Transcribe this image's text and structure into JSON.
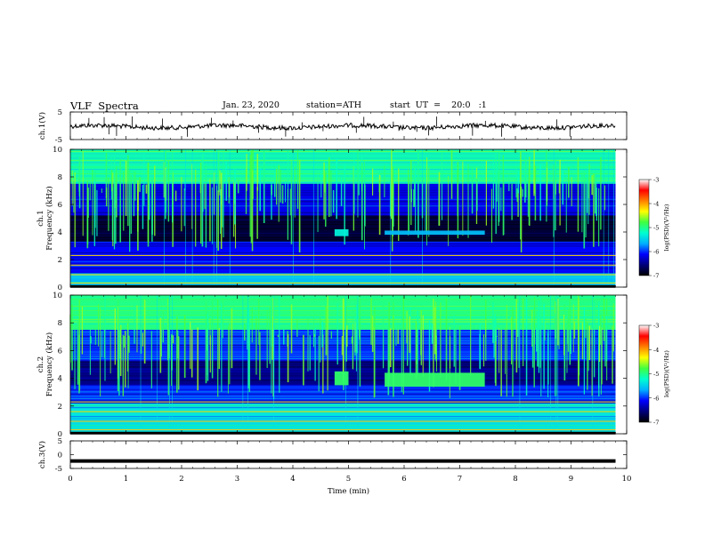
{
  "header": {
    "title": "VLF  Spectra",
    "date": "Jan. 23, 2020",
    "station": "station=ATH",
    "start": "start  UT  =    20:0   :1"
  },
  "chart_data": [
    {
      "type": "line",
      "panel": "ch1-waveform",
      "ylabel": "ch.1(V)",
      "ylim": [
        -5,
        5
      ],
      "ytick_labels": [
        "5",
        "-5"
      ],
      "grid": false
    },
    {
      "type": "heatmap",
      "panel": "ch1-spectrogram",
      "ylabel_lines": [
        "ch.1",
        "Frequency  (kHz)"
      ],
      "ylim": [
        0,
        10
      ],
      "ytick_labels": [
        "0",
        "2",
        "4",
        "6",
        "8",
        "10"
      ],
      "colorbar": {
        "label": "log(PSD)(V²/Hz)",
        "range": [
          -7,
          -3
        ],
        "tick_labels": [
          "-3",
          "-4",
          "-5",
          "-6",
          "-7"
        ],
        "colormap": [
          "#000000",
          "#00007a",
          "#0000ff",
          "#00b0ff",
          "#00ffd0",
          "#40ff40",
          "#ffff00",
          "#ff8000",
          "#ff0000",
          "#ffffff"
        ]
      },
      "background_psd": -6.3,
      "features": [
        {
          "kind": "band",
          "f": [
            0.0,
            1.0
          ],
          "psd": -5.6
        },
        {
          "kind": "band",
          "f": [
            1.0,
            3.3
          ],
          "psd": -6.1
        },
        {
          "kind": "band",
          "f": [
            3.3,
            5.2
          ],
          "psd": -6.8
        },
        {
          "kind": "band",
          "f": [
            5.2,
            7.5
          ],
          "psd": -6.2
        },
        {
          "kind": "band",
          "f": [
            7.5,
            10.0
          ],
          "psd": -5.1
        },
        {
          "kind": "emission",
          "t": [
            4.75,
            5.0
          ],
          "f": [
            3.7,
            4.2
          ],
          "psd": -5.3
        },
        {
          "kind": "emission",
          "t": [
            5.65,
            7.45
          ],
          "f": [
            3.8,
            4.1
          ],
          "psd": -5.6
        }
      ]
    },
    {
      "type": "heatmap",
      "panel": "ch2-spectrogram",
      "ylabel_lines": [
        "ch.2",
        "Frequency  (kHz)"
      ],
      "ylim": [
        0,
        10
      ],
      "ytick_labels": [
        "0",
        "2",
        "4",
        "6",
        "8",
        "10"
      ],
      "colorbar": {
        "label": "log(PSD)(V²/Hz)",
        "range": [
          -7,
          -3
        ],
        "tick_labels": [
          "-3",
          "-4",
          "-5",
          "-6",
          "-7"
        ]
      },
      "background_psd": -6.2,
      "features": [
        {
          "kind": "band",
          "f": [
            0.0,
            2.2
          ],
          "psd": -5.4
        },
        {
          "kind": "band",
          "f": [
            2.2,
            3.5
          ],
          "psd": -6.0
        },
        {
          "kind": "band",
          "f": [
            3.5,
            5.3
          ],
          "psd": -6.5
        },
        {
          "kind": "band",
          "f": [
            5.3,
            7.5
          ],
          "psd": -6.0
        },
        {
          "kind": "band",
          "f": [
            7.5,
            10.0
          ],
          "psd": -5.0
        },
        {
          "kind": "emission",
          "t": [
            4.75,
            5.0
          ],
          "f": [
            3.5,
            4.5
          ],
          "psd": -4.9
        },
        {
          "kind": "emission",
          "t": [
            5.65,
            7.45
          ],
          "f": [
            3.4,
            4.4
          ],
          "psd": -4.9
        }
      ]
    },
    {
      "type": "line",
      "panel": "ch3-waveform",
      "ylabel": "ch.3(V)",
      "ylim": [
        -5,
        5
      ],
      "ytick_labels": [
        "5",
        "0",
        "-5"
      ],
      "x": [
        0,
        9.8
      ],
      "y": [
        -2.3,
        -2.3
      ],
      "xlabel": "Time  (min)",
      "xlim": [
        0,
        10
      ],
      "xtick_labels": [
        "0",
        "1",
        "2",
        "3",
        "4",
        "5",
        "6",
        "7",
        "8",
        "9",
        "10"
      ],
      "grid": false
    }
  ]
}
